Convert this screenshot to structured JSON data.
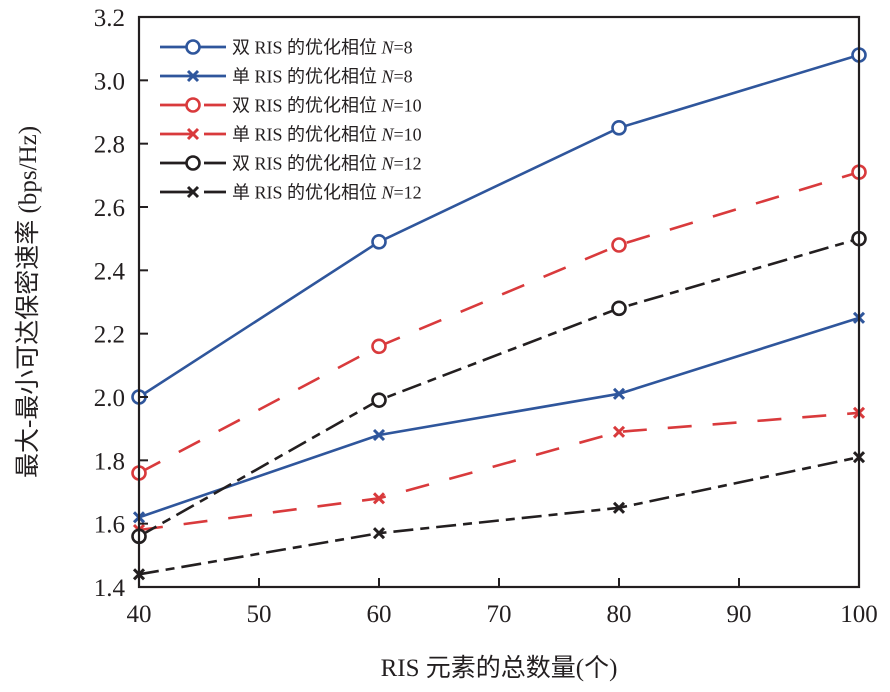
{
  "chart_data": {
    "type": "line",
    "title": "",
    "xlabel": "RIS 元素的总数量(个)",
    "ylabel": "最大-最小可达保密速率 (bps/Hz)",
    "x": [
      40,
      60,
      80,
      100
    ],
    "xlim": [
      40,
      100
    ],
    "ylim": [
      1.4,
      3.2
    ],
    "xticks": [
      40,
      50,
      60,
      70,
      80,
      90,
      100
    ],
    "xtick_labels": [
      "40",
      "50",
      "60",
      "70",
      "80",
      "90",
      "100"
    ],
    "yticks": [
      1.4,
      1.6,
      1.8,
      2.0,
      2.2,
      2.4,
      2.6,
      2.8,
      3.0,
      3.2
    ],
    "ytick_labels": [
      "1.4",
      "1.6",
      "1.8",
      "2.0",
      "2.2",
      "2.4",
      "2.6",
      "2.8",
      "3.0",
      "3.2"
    ],
    "grid": false,
    "legend_position": "top-left",
    "series": [
      {
        "name": "双 RIS 的优化相位 N=8",
        "prefix": "双 RIS 的优化相位 ",
        "n_label": "N",
        "n_value": "=8",
        "values": [
          2.0,
          2.49,
          2.85,
          3.08
        ],
        "color": "#2f569c",
        "marker": "circle",
        "dash": "solid"
      },
      {
        "name": "单 RIS 的优化相位 N=8",
        "prefix": "单 RIS 的优化相位 ",
        "n_label": "N",
        "n_value": "=8",
        "values": [
          1.62,
          1.88,
          2.01,
          2.25
        ],
        "color": "#2f569c",
        "marker": "x",
        "dash": "solid"
      },
      {
        "name": "双 RIS 的优化相位 N=10",
        "prefix": "双 RIS 的优化相位 ",
        "n_label": "N",
        "n_value": "=10",
        "values": [
          1.76,
          2.16,
          2.48,
          2.71
        ],
        "color": "#d93a3c",
        "marker": "circle",
        "dash": "dashed"
      },
      {
        "name": "单 RIS 的优化相位 N=10",
        "prefix": "单 RIS 的优化相位 ",
        "n_label": "N",
        "n_value": "=10",
        "values": [
          1.58,
          1.68,
          1.89,
          1.95
        ],
        "color": "#d93a3c",
        "marker": "x",
        "dash": "dashed"
      },
      {
        "name": "双 RIS 的优化相位 N=12",
        "prefix": "双 RIS 的优化相位 ",
        "n_label": "N",
        "n_value": "=12",
        "values": [
          1.56,
          1.99,
          2.28,
          2.5
        ],
        "color": "#231f20",
        "marker": "circle",
        "dash": "dashdot"
      },
      {
        "name": "单 RIS 的优化相位 N=12",
        "prefix": "单 RIS 的优化相位 ",
        "n_label": "N",
        "n_value": "=12",
        "values": [
          1.44,
          1.57,
          1.65,
          1.81
        ],
        "color": "#231f20",
        "marker": "x",
        "dash": "dashdot"
      }
    ]
  }
}
